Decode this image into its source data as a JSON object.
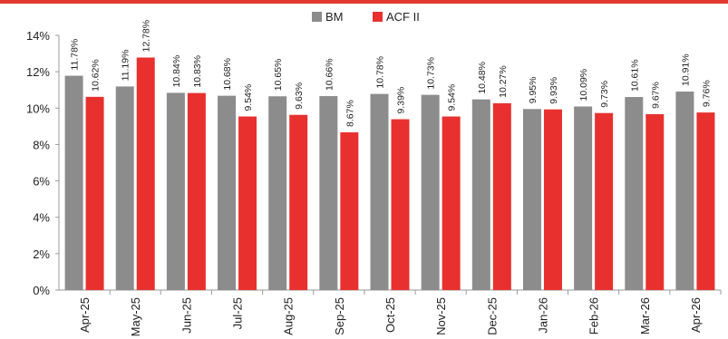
{
  "colors": {
    "bm": "#8c8c8c",
    "acf": "#e8312f",
    "accent": "#e03a2e"
  },
  "chart_data": {
    "type": "bar",
    "categories": [
      "Apr-25",
      "May-25",
      "Jun-25",
      "Jul-25",
      "Aug-25",
      "Sep-25",
      "Oct-25",
      "Nov-25",
      "Dec-25",
      "Jan-26",
      "Feb-26",
      "Mar-26",
      "Apr-26"
    ],
    "series": [
      {
        "name": "BM",
        "values": [
          11.78,
          11.19,
          10.84,
          10.68,
          10.65,
          10.66,
          10.78,
          10.73,
          10.48,
          9.95,
          10.09,
          10.61,
          10.91
        ]
      },
      {
        "name": "ACF II",
        "values": [
          10.62,
          12.78,
          10.83,
          9.54,
          9.63,
          8.67,
          9.39,
          9.54,
          10.27,
          9.93,
          9.73,
          9.67,
          9.76
        ]
      }
    ],
    "data_labels": {
      "BM": [
        "11.78%",
        "11.19%",
        "10.84%",
        "10.68%",
        "10.65%",
        "10.66%",
        "10.78%",
        "10.73%",
        "10.48%",
        "9.95%",
        "10.09%",
        "10.61%",
        "10.91%"
      ],
      "ACF II": [
        "10.62%",
        "12.78%",
        "10.83%",
        "9.54%",
        "9.63%",
        "8.67%",
        "9.39%",
        "9.54%",
        "10.27%",
        "9.93%",
        "9.73%",
        "9.67%",
        "9.76%"
      ]
    },
    "y_ticks": [
      "0%",
      "2%",
      "4%",
      "6%",
      "8%",
      "10%",
      "12%",
      "14%"
    ],
    "ylim": [
      0,
      14
    ],
    "grid": false,
    "legend_position": "top-center"
  }
}
